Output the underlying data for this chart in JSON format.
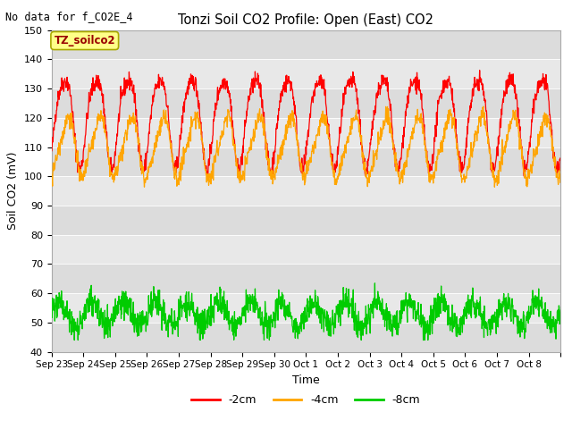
{
  "title": "Tonzi Soil CO2 Profile: Open (East) CO2",
  "subtitle": "No data for f_CO2E_4",
  "ylabel": "Soil CO2 (mV)",
  "xlabel": "Time",
  "ylim": [
    40,
    150
  ],
  "yticks": [
    40,
    50,
    60,
    70,
    80,
    90,
    100,
    110,
    120,
    130,
    140,
    150
  ],
  "legend_label_2cm": "-2cm",
  "legend_label_4cm": "-4cm",
  "legend_label_8cm": "-8cm",
  "color_2cm": "#ff0000",
  "color_4cm": "#ffa500",
  "color_8cm": "#00cc00",
  "legend_box_facecolor": "#ffff88",
  "legend_box_edgecolor": "#aaaa00",
  "legend_box_label": "TZ_soilco2",
  "legend_box_textcolor": "#990000",
  "bg_upper": "#e8e8e8",
  "bg_lower": "#d8d8d8",
  "n_days": 16,
  "pts_per_day": 96,
  "seed": 42
}
